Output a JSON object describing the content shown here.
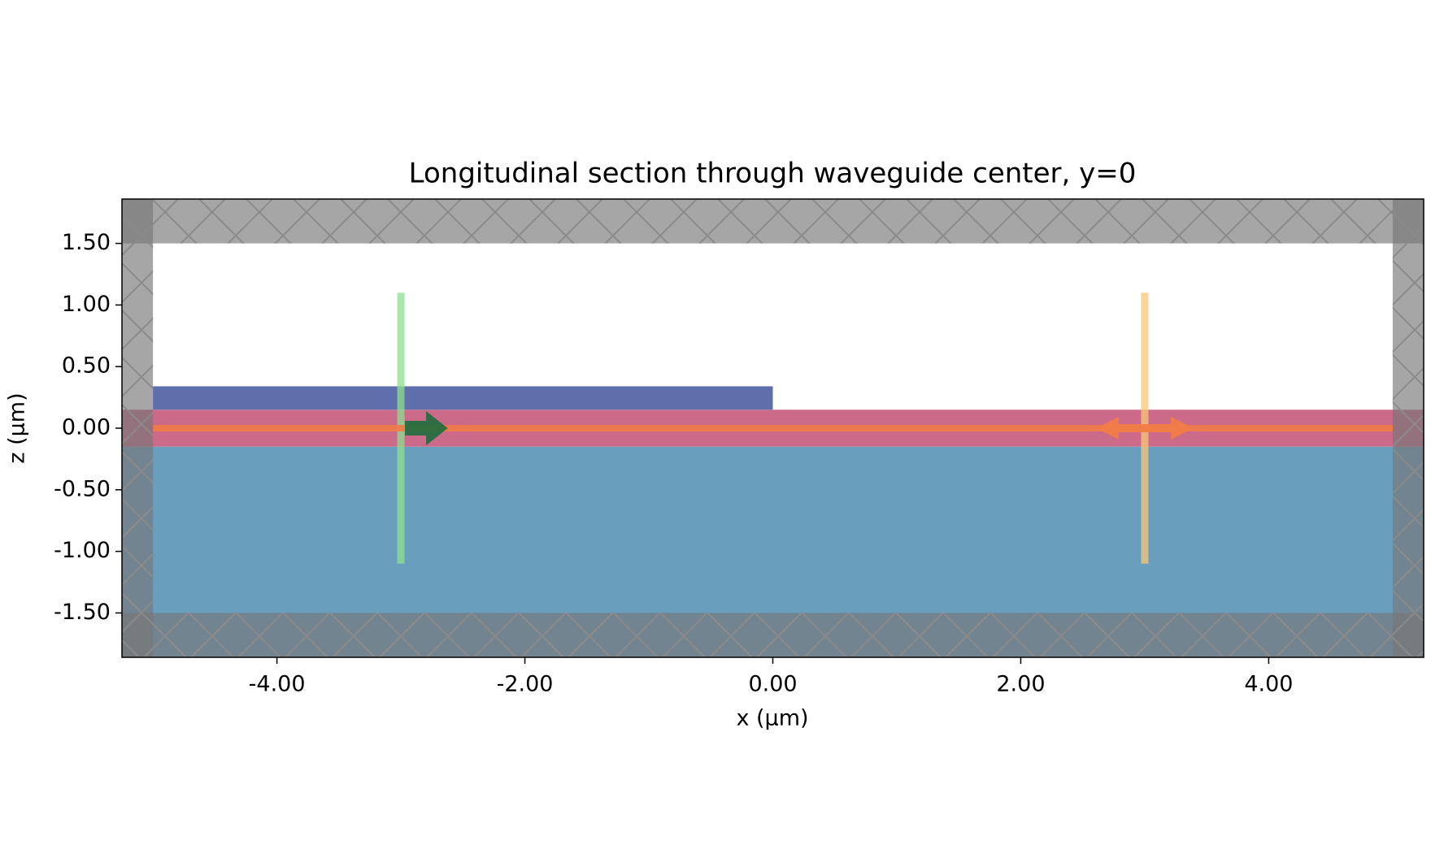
{
  "chart_data": {
    "type": "cross-section",
    "title": "Longitudinal section through waveguide center, y=0",
    "xlabel": "x (μm)",
    "ylabel": "z (μm)",
    "xlim": [
      -5.25,
      5.25
    ],
    "ylim": [
      -1.86,
      1.86
    ],
    "xticks": [
      {
        "value": -4,
        "label": "-4.00"
      },
      {
        "value": -2,
        "label": "-2.00"
      },
      {
        "value": 0,
        "label": "0.00"
      },
      {
        "value": 2,
        "label": "2.00"
      },
      {
        "value": 4,
        "label": "4.00"
      }
    ],
    "yticks": [
      {
        "value": 1.5,
        "label": "1.50"
      },
      {
        "value": 1,
        "label": "1.00"
      },
      {
        "value": 0.5,
        "label": "0.50"
      },
      {
        "value": 0,
        "label": "0.00"
      },
      {
        "value": -0.5,
        "label": "-0.50"
      },
      {
        "value": -1,
        "label": "-1.00"
      },
      {
        "value": -1.5,
        "label": "-1.50"
      }
    ],
    "structures": [
      {
        "x": [
          -5.25,
          5.25
        ],
        "z": [
          -1.86,
          -0.15
        ],
        "color": "#6a9ebd"
      },
      {
        "x": [
          -5.25,
          5.25
        ],
        "z": [
          -0.15,
          0.15
        ],
        "color": "#cc6a8a"
      },
      {
        "x": [
          -5,
          0
        ],
        "z": [
          0.15,
          0.34
        ],
        "color": "#5f6fab"
      }
    ],
    "axis_line": {
      "x": [
        -5,
        5
      ],
      "z": 0,
      "color": "#f07c48"
    },
    "source": {
      "x": -3,
      "z": [
        -1.1,
        1.1
      ],
      "color": "#8ee08e",
      "arrow_color": "#1e6e3e"
    },
    "monitor": {
      "x": 3,
      "z": [
        -1.1,
        1.1
      ],
      "color": "#f8c878",
      "arrow_color": "#f07c48"
    },
    "pml": [
      {
        "x": [
          -5.25,
          5.25
        ],
        "z": [
          1.5,
          1.86
        ]
      },
      {
        "x": [
          -5.25,
          5.25
        ],
        "z": [
          -1.86,
          -1.5
        ]
      },
      {
        "x": [
          -5.25,
          -5
        ],
        "z": [
          -1.86,
          1.86
        ]
      },
      {
        "x": [
          5,
          5.25
        ],
        "z": [
          -1.86,
          1.86
        ]
      }
    ]
  }
}
